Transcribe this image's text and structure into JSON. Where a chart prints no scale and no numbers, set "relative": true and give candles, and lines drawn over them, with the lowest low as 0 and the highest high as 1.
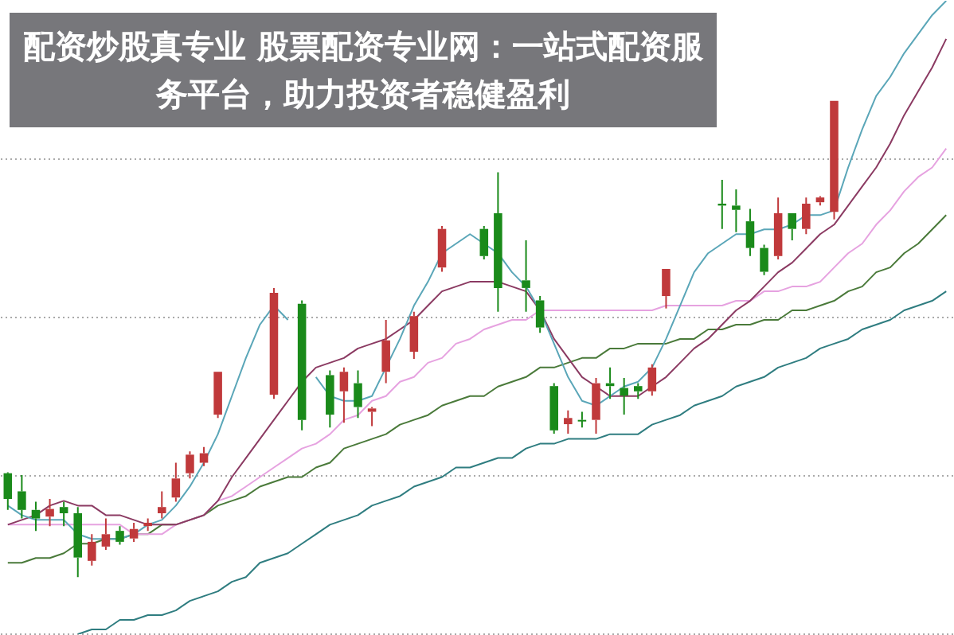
{
  "chart_data": {
    "type": "candlestick",
    "title": "配资炒股真专业 股票配资专业网：一站式配资服务平台，助力投资者稳健盈利",
    "relative": true,
    "grid": "y",
    "legend": false,
    "marker": "none",
    "categories": [
      null,
      null,
      null,
      null,
      null,
      null,
      null,
      null,
      null,
      null,
      null,
      null,
      null,
      null,
      null,
      null,
      null,
      null,
      null,
      null,
      null,
      null,
      null,
      null,
      null,
      null,
      null,
      null,
      null,
      null,
      null,
      null,
      null,
      null,
      null,
      null,
      null,
      null,
      null,
      null,
      null,
      null,
      null,
      null,
      null,
      null,
      null,
      null,
      null,
      null,
      null,
      null,
      null,
      null,
      null,
      null,
      null,
      null,
      null,
      null,
      null,
      null,
      null,
      null,
      null,
      null,
      null,
      null
    ],
    "colors": [
      "#1a8a1a",
      "#1a8a1a",
      "#1a8a1a",
      "#c0393b",
      "#1a8a1a",
      "#1a8a1a",
      "#c0393b",
      "#c0393b",
      "#1a8a1a",
      "#c0393b",
      "#c0393b",
      "#c0393b",
      "#c0393b",
      "#c0393b",
      "#c0393b",
      "#c0393b",
      null,
      null,
      null,
      "#c0393b",
      null,
      "#1a8a1a",
      null,
      "#1a8a1a",
      "#c0393b",
      "#1a8a1a",
      "#c0393b",
      "#c0393b",
      null,
      "#c0393b",
      null,
      "#c0393b",
      null,
      null,
      "#1a8a1a",
      "#1a8a1a",
      null,
      "#1a8a1a",
      "#1a8a1a",
      "#1a8a1a",
      "#c0393b",
      "#1a8a1a",
      "#c0393b",
      "#1a8a1a",
      "#1a8a1a",
      "#1a8a1a",
      "#c0393b",
      "#c0393b",
      null,
      null,
      null,
      "#1a8a1a",
      "#1a8a1a",
      "#1a8a1a",
      "#1a8a1a",
      "#c0393b",
      "#1a8a1a",
      "#c0393b",
      "#c0393b",
      "#c0393b",
      null,
      null,
      null,
      null,
      null,
      null,
      null,
      null
    ],
    "ohlc": [
      [
        0.218,
        0.22,
        0.141,
        0.164
      ],
      [
        0.18,
        0.214,
        0.123,
        0.141
      ],
      [
        0.141,
        0.158,
        0.097,
        0.123
      ],
      [
        0.127,
        0.164,
        0.107,
        0.143
      ],
      [
        0.147,
        0.158,
        0.107,
        0.134
      ],
      [
        0.134,
        0.147,
        0,
        0.041
      ],
      [
        0.034,
        0.09,
        0.024,
        0.074
      ],
      [
        0.064,
        0.123,
        0.057,
        0.09
      ],
      [
        0.097,
        0.107,
        0.068,
        0.074
      ],
      [
        0.081,
        0.114,
        0.074,
        0.101
      ],
      [
        0.107,
        0.123,
        0.097,
        0.114
      ],
      [
        0.134,
        0.18,
        0.123,
        0.147
      ],
      [
        0.167,
        0.24,
        0.158,
        0.207
      ],
      [
        0.218,
        0.264,
        0.207,
        0.257
      ],
      [
        0.24,
        0.273,
        0.233,
        0.26
      ],
      [
        0.341,
        0.431,
        0.334,
        0.431
      ],
      null,
      null,
      null,
      [
        0.383,
        0.607,
        0.374,
        0.597
      ],
      null,
      [
        0.574,
        0.581,
        0.308,
        0.33
      ],
      null,
      [
        0.424,
        0.434,
        0.314,
        0.341
      ],
      [
        0.39,
        0.44,
        0.324,
        0.431
      ],
      [
        0.407,
        0.434,
        0.334,
        0.357
      ],
      [
        0.347,
        0.357,
        0.317,
        0.354
      ],
      [
        0.431,
        0.54,
        0.407,
        0.497
      ],
      null,
      [
        0.473,
        0.557,
        0.458,
        0.548
      ],
      null,
      [
        0.65,
        0.737,
        0.641,
        0.731
      ],
      null,
      null,
      [
        0.731,
        0.737,
        0.667,
        0.674
      ],
      [
        0.764,
        0.85,
        0.557,
        0.607
      ],
      null,
      [
        0.623,
        0.707,
        0.557,
        0.607
      ],
      [
        0.581,
        0.59,
        0.513,
        0.524
      ],
      [
        0.401,
        0.407,
        0.301,
        0.308
      ],
      [
        0.321,
        0.35,
        0.301,
        0.334
      ],
      [
        0.33,
        0.347,
        0.314,
        0.328
      ],
      [
        0.33,
        0.418,
        0.301,
        0.407
      ],
      [
        0.407,
        0.44,
        0.374,
        0.401
      ],
      [
        0.397,
        0.418,
        0.341,
        0.381
      ],
      [
        0.401,
        0.407,
        0.374,
        0.39
      ],
      [
        0.39,
        0.447,
        0.381,
        0.44
      ],
      [
        0.59,
        0.647,
        0.564,
        0.647
      ],
      null,
      null,
      null,
      [
        0.784,
        0.834,
        0.731,
        0.78
      ],
      [
        0.78,
        0.814,
        0.724,
        0.771
      ],
      [
        0.747,
        0.773,
        0.674,
        0.691
      ],
      [
        0.691,
        0.698,
        0.634,
        0.641
      ],
      [
        0.674,
        0.797,
        0.667,
        0.764
      ],
      [
        0.764,
        0.764,
        0.707,
        0.731
      ],
      [
        0.731,
        0.797,
        0.72,
        0.784
      ],
      [
        0.787,
        0.8,
        0.78,
        0.797
      ],
      [
        0.767,
        1,
        0.751,
        1
      ],
      null,
      null,
      null,
      null,
      null,
      null,
      null,
      null
    ],
    "series": [
      {
        "type": "line",
        "color": "#5aa6b8",
        "values": [
          0.15,
          0.13,
          0.12,
          0.12,
          0.12,
          0.09,
          0.08,
          0.08,
          0.08,
          0.09,
          0.11,
          0.12,
          0.15,
          0.19,
          0.24,
          0.3,
          0.38,
          0.46,
          0.53,
          0.57,
          0.54,
          null,
          0.42,
          0.38,
          0.37,
          0.37,
          0.38,
          0.44,
          0.5,
          0.57,
          0.62,
          0.68,
          0.7,
          0.72,
          0.7,
          0.68,
          0.64,
          0.61,
          0.56,
          0.49,
          0.42,
          0.37,
          0.36,
          0.38,
          0.4,
          0.41,
          0.44,
          0.5,
          0.57,
          0.64,
          0.68,
          0.7,
          0.72,
          0.72,
          0.73,
          0.73,
          0.74,
          0.76,
          0.76,
          0.77,
          0.86,
          0.94,
          1.01,
          1.05,
          1.1,
          1.14,
          1.18,
          1.21
        ]
      },
      {
        "type": "line",
        "color": "#8b3a62",
        "values": [
          0.11,
          0.12,
          0.13,
          0.15,
          0.16,
          0.15,
          0.15,
          0.13,
          0.13,
          0.12,
          0.11,
          0.11,
          0.11,
          0.12,
          0.13,
          0.16,
          0.21,
          0.25,
          0.29,
          0.33,
          0.37,
          0.41,
          0.44,
          0.45,
          0.46,
          0.48,
          0.49,
          0.5,
          0.52,
          0.54,
          0.57,
          0.6,
          0.61,
          0.62,
          0.62,
          0.62,
          0.61,
          0.6,
          0.56,
          0.5,
          0.46,
          0.42,
          0.4,
          0.38,
          0.38,
          0.38,
          0.4,
          0.42,
          0.45,
          0.48,
          0.5,
          0.53,
          0.56,
          0.58,
          0.61,
          0.64,
          0.66,
          0.69,
          0.72,
          0.74,
          0.78,
          0.82,
          0.86,
          0.91,
          0.97,
          1.02,
          1.07,
          1.13
        ]
      },
      {
        "type": "line",
        "color": "#e6a2e0",
        "values": [
          0.11,
          0.11,
          0.11,
          0.11,
          0.11,
          0.11,
          0.11,
          0.11,
          0.11,
          0.09,
          0.09,
          0.09,
          0.11,
          0.12,
          0.13,
          0.16,
          0.17,
          0.19,
          0.21,
          0.23,
          0.25,
          0.27,
          0.28,
          0.3,
          0.33,
          0.34,
          0.37,
          0.38,
          0.41,
          0.42,
          0.45,
          0.46,
          0.49,
          0.5,
          0.52,
          0.53,
          0.54,
          0.54,
          0.56,
          0.56,
          0.56,
          0.56,
          0.56,
          0.56,
          0.56,
          0.56,
          0.56,
          0.57,
          0.57,
          0.57,
          0.57,
          0.57,
          0.58,
          0.58,
          0.6,
          0.6,
          0.61,
          0.61,
          0.62,
          0.65,
          0.68,
          0.7,
          0.74,
          0.77,
          0.81,
          0.84,
          0.86,
          0.9
        ]
      },
      {
        "type": "line",
        "color": "#4a7a3a",
        "values": [
          0.03,
          0.03,
          0.04,
          0.04,
          0.05,
          0.07,
          0.07,
          0.08,
          0.08,
          0.09,
          0.09,
          0.11,
          0.11,
          0.12,
          0.13,
          0.15,
          0.16,
          0.17,
          0.19,
          0.2,
          0.21,
          0.21,
          0.23,
          0.24,
          0.27,
          0.28,
          0.29,
          0.3,
          0.32,
          0.33,
          0.34,
          0.36,
          0.37,
          0.38,
          0.38,
          0.4,
          0.41,
          0.42,
          0.44,
          0.44,
          0.45,
          0.46,
          0.46,
          0.48,
          0.48,
          0.49,
          0.49,
          0.49,
          0.5,
          0.5,
          0.52,
          0.52,
          0.53,
          0.53,
          0.54,
          0.54,
          0.56,
          0.56,
          0.57,
          0.58,
          0.6,
          0.61,
          0.64,
          0.65,
          0.68,
          0.7,
          0.73,
          0.76
        ]
      },
      {
        "type": "line",
        "color": "#2f7d80",
        "values": [
          null,
          null,
          null,
          null,
          null,
          -0.12,
          -0.11,
          -0.11,
          -0.09,
          -0.09,
          -0.08,
          -0.08,
          -0.07,
          -0.05,
          -0.04,
          -0.03,
          -0.01,
          0,
          0.03,
          0.04,
          0.05,
          0.07,
          0.09,
          0.11,
          0.12,
          0.13,
          0.15,
          0.16,
          0.17,
          0.19,
          0.2,
          0.21,
          0.23,
          0.23,
          0.24,
          0.25,
          0.25,
          0.27,
          0.28,
          0.28,
          0.29,
          0.29,
          0.29,
          0.3,
          0.3,
          0.3,
          0.32,
          0.33,
          0.34,
          0.36,
          0.37,
          0.38,
          0.4,
          0.41,
          0.42,
          0.44,
          0.45,
          0.46,
          0.48,
          0.49,
          0.5,
          0.52,
          0.53,
          0.54,
          0.56,
          0.57,
          0.58,
          0.6
        ]
      }
    ]
  }
}
